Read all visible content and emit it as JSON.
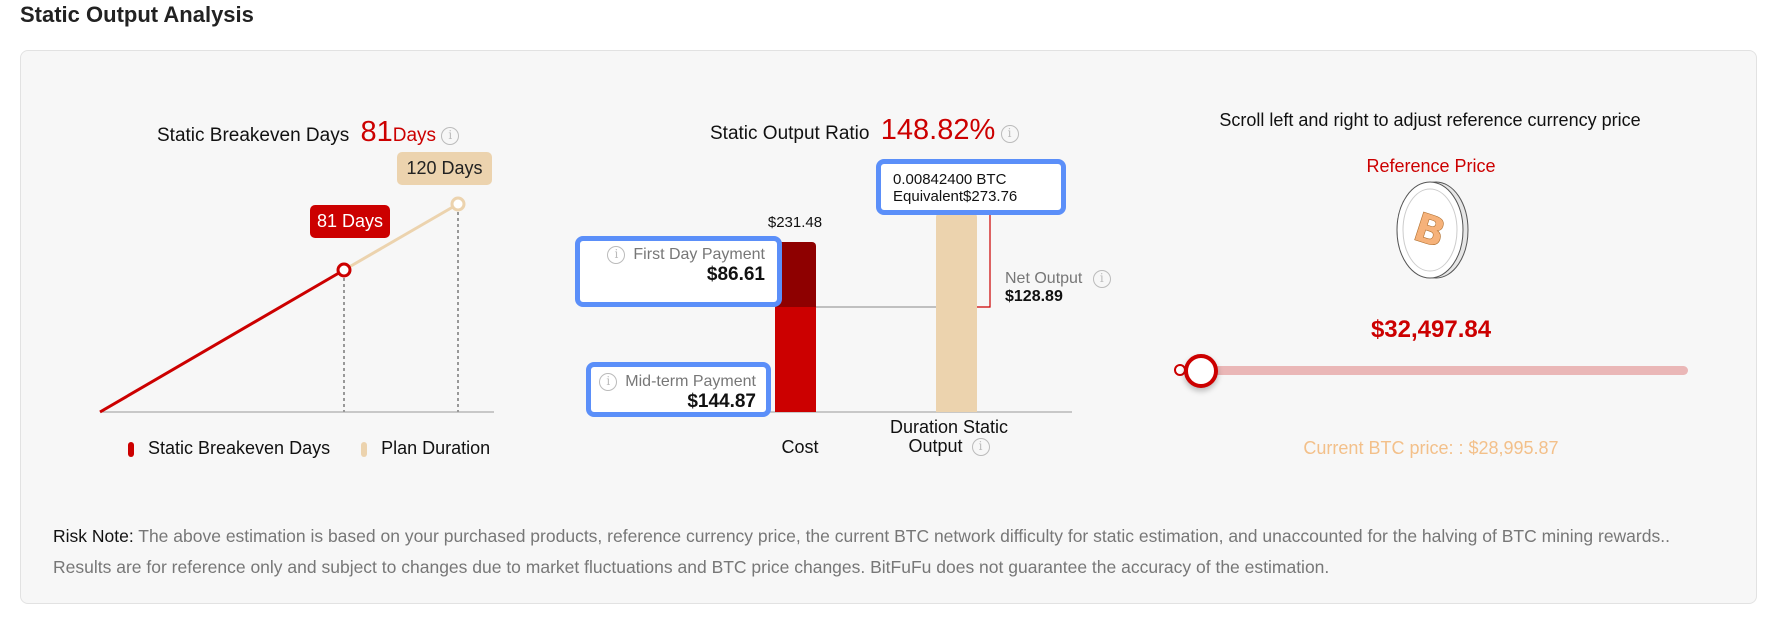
{
  "page_title": "Static Output Analysis",
  "breakeven": {
    "label": "Static Breakeven Days",
    "value": "81",
    "unit": "Days",
    "tag_breakeven": "81 Days",
    "tag_duration": "120 Days",
    "breakeven_days": 81,
    "plan_days": 120,
    "legend": [
      {
        "label": "Static Breakeven Days",
        "color": "#cc0000"
      },
      {
        "label": "Plan Duration",
        "color": "#ecd3ae"
      }
    ]
  },
  "ratio": {
    "label": "Static Output Ratio",
    "value": "148.82%",
    "cost_total": "$231.48",
    "first_day_label": "First Day Payment",
    "first_day_value": "$86.61",
    "midterm_label": "Mid-term Payment",
    "midterm_value": "$144.87",
    "btc_amount": "0.00842400 BTC",
    "equivalent": "Equivalent$273.76",
    "net_label": "Net Output",
    "net_value": "$128.89",
    "cost_axis": "Cost",
    "output_axis_1": "Duration Static",
    "output_axis_2": "Output"
  },
  "reference": {
    "instruction": "Scroll left and right to adjust reference currency price",
    "label": "Reference Price",
    "price": "$32,497.84",
    "current": "Current BTC price: : $28,995.87",
    "slider_fraction": 0.04
  },
  "risk": {
    "label": "Risk Note:",
    "text": " The above estimation is based on your purchased products, reference currency price, the current BTC network difficulty for static estimation, and unaccounted for the halving of BTC mining rewards.. Results are for reference only and subject to changes due to market fluctuations and BTC price changes. BitFuFu does not guarantee the accuracy of the estimation."
  },
  "colors": {
    "red": "#cc0000",
    "dark_red": "#8e0000",
    "beige": "#ecd3ae",
    "highlight": "#5b8ff9"
  }
}
